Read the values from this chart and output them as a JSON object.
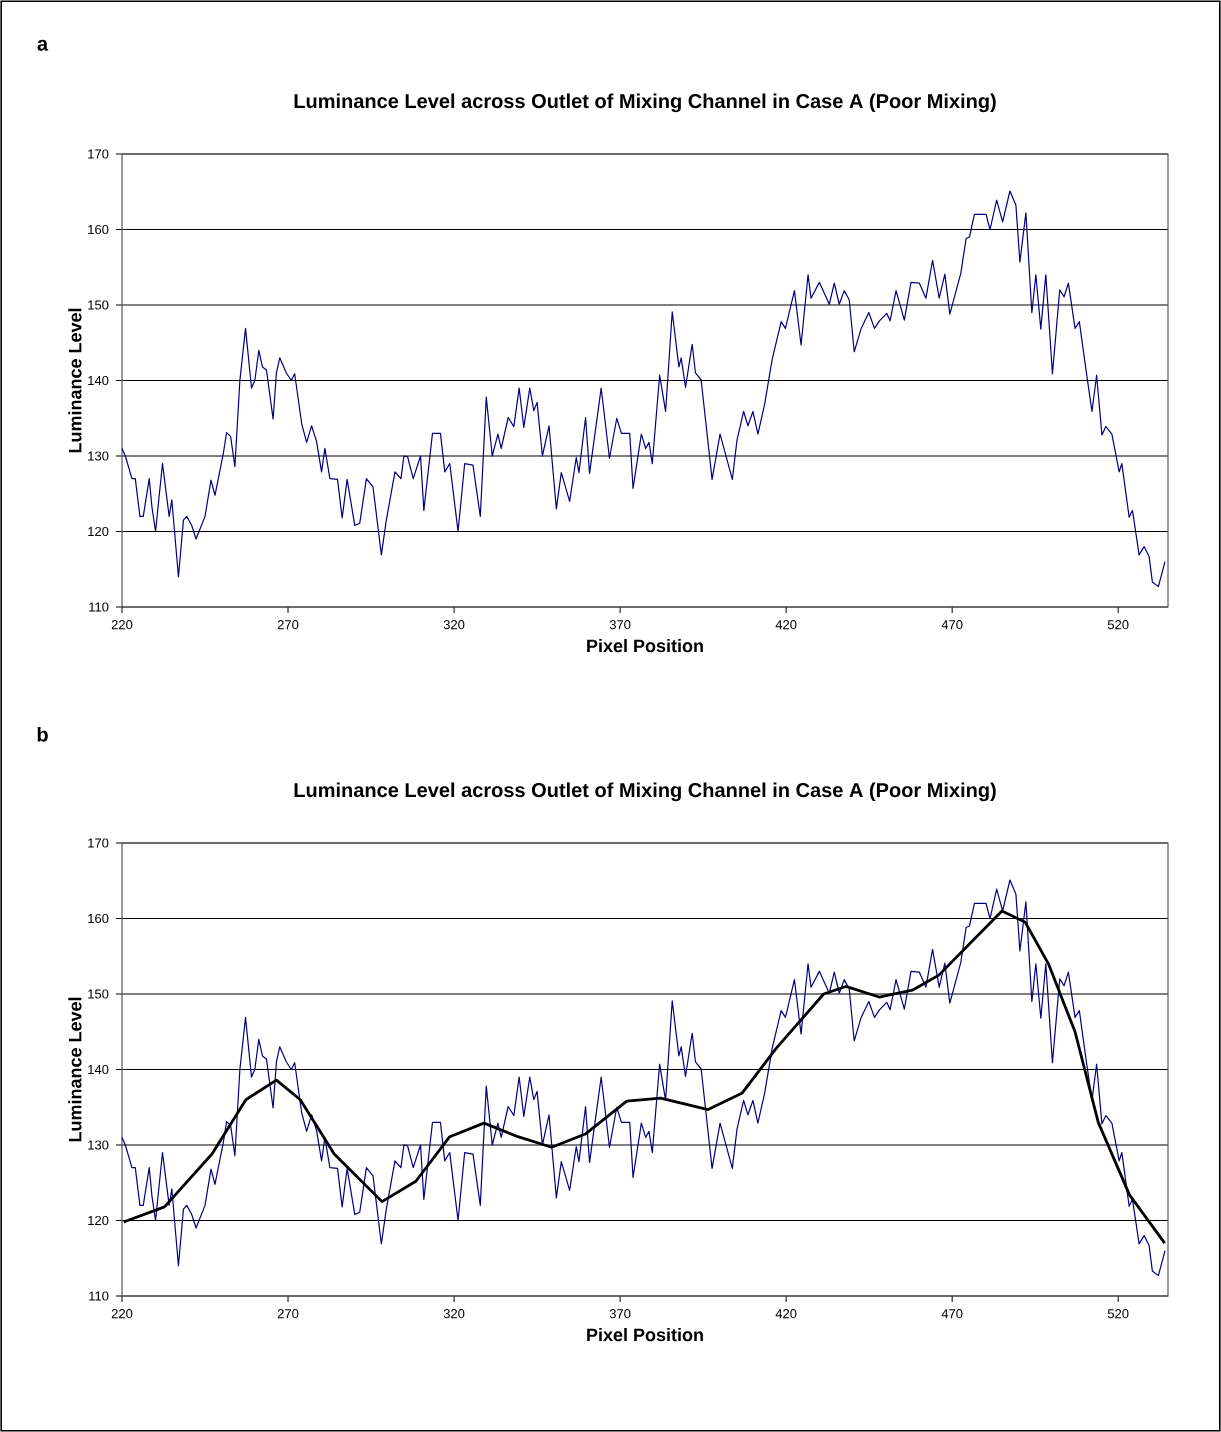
{
  "chart_data": [
    {
      "type": "line",
      "title": "Luminance Level across Outlet of Mixing Channel in Case A (Poor Mixing)",
      "xlabel": "Pixel Position",
      "ylabel": "Luminance Level",
      "annotations": [
        "a"
      ],
      "xlim": [
        220,
        535
      ],
      "ylim": [
        110,
        170
      ],
      "xticks": [
        220,
        270,
        320,
        370,
        420,
        470,
        520
      ],
      "yticks": [
        110,
        120,
        130,
        140,
        150,
        160,
        170
      ],
      "grid": "y",
      "series": [
        {
          "color": "#000080",
          "x": [
            220,
            221,
            223,
            224,
            225.4,
            226.4,
            228.2,
            229,
            230.1,
            232.2,
            234.2,
            235,
            237,
            238.5,
            239.5,
            241,
            242.3,
            245,
            246.8,
            248,
            250.5,
            251.5,
            252.7,
            254,
            255.5,
            257.2,
            259,
            260,
            261.2,
            262.3,
            263.5,
            265.5,
            266.5,
            267.5,
            269.5,
            271,
            272,
            274.1,
            275.6,
            277.1,
            278.6,
            280.1,
            281.1,
            282.6,
            284.9,
            286.3,
            287.8,
            290.1,
            291.6,
            293.6,
            295.6,
            298.1,
            299.6,
            302.2,
            304,
            304.9,
            306,
            307.7,
            309.9,
            310.9,
            313.5,
            315.9,
            317.2,
            318.7,
            321.2,
            323.2,
            325.7,
            327.9,
            329.7,
            331.5,
            333.2,
            334.2,
            336.3,
            338,
            339.6,
            341,
            342.8,
            344,
            345,
            346.6,
            348.6,
            350.8,
            352.3,
            354.8,
            356.8,
            357.6,
            359.6,
            360.8,
            364.3,
            366.8,
            369,
            370.4,
            372.9,
            373.9,
            376.4,
            377.7,
            378.7,
            379.7,
            381.9,
            383.7,
            385.7,
            387.7,
            388.4,
            389.7,
            391.7,
            392.7,
            394.4,
            397.7,
            400.1,
            403.8,
            405.2,
            407.2,
            408.5,
            410,
            411.5,
            413.5,
            415.8,
            418.5,
            419.8,
            422.5,
            424.5,
            426.6,
            427.5,
            430,
            433,
            434.5,
            436,
            437.5,
            439,
            440.5,
            442.6,
            444.9,
            446.6,
            448.1,
            450.3,
            451.3,
            453.1,
            455.6,
            457.6,
            460.1,
            462.1,
            464.1,
            466.1,
            467.8,
            469.3,
            472.6,
            474.2,
            475.2,
            476.7,
            480.2,
            481.4,
            483.4,
            485.2,
            487.4,
            489.2,
            490.4,
            492.2,
            494,
            495.2,
            496.7,
            498.2,
            500.2,
            502.4,
            503.7,
            505,
            507,
            508.3,
            510.3,
            512.1,
            513.5,
            515.1,
            516.3,
            518.1,
            520.3,
            521.1,
            523.3,
            524.3,
            526.3,
            527.8,
            529.3,
            530.3,
            532.1,
            534.1
          ],
          "values": [
            131,
            130,
            127,
            127,
            122,
            122,
            127,
            123.3,
            120,
            129,
            122,
            124.2,
            114,
            121.5,
            122,
            120.8,
            119,
            122,
            126.8,
            124.8,
            130.3,
            133.1,
            132.6,
            128.6,
            140,
            146.9,
            139,
            140,
            144,
            141.8,
            141.4,
            134.9,
            141,
            143,
            141,
            140,
            140.9,
            134.3,
            131.8,
            134,
            131.9,
            127.9,
            131,
            127,
            126.9,
            121.8,
            126.9,
            120.8,
            121.1,
            127,
            125.9,
            116.9,
            121.5,
            127.9,
            127,
            130,
            129.9,
            127,
            130,
            122.8,
            133,
            133,
            127.9,
            129,
            120,
            129,
            128.8,
            122,
            137.8,
            130,
            132.9,
            131,
            135.1,
            133.9,
            139,
            133.8,
            139,
            136,
            137.1,
            130,
            134,
            123,
            127.8,
            124,
            129.8,
            127.8,
            135.1,
            127.7,
            139,
            129.7,
            135,
            133,
            133,
            125.7,
            132.9,
            131,
            131.8,
            129,
            140.7,
            135.9,
            149.1,
            141.8,
            143,
            139.1,
            144.8,
            141,
            140.1,
            126.9,
            132.9,
            126.9,
            132.1,
            135.9,
            134,
            135.9,
            132.9,
            136.8,
            142.8,
            147.8,
            146.9,
            151.9,
            144.7,
            154,
            150.9,
            153,
            150.1,
            152.9,
            150.1,
            151.9,
            150.7,
            143.8,
            146.9,
            149,
            146.9,
            147.9,
            148.9,
            147.9,
            151.9,
            148,
            153,
            152.9,
            150.9,
            155.9,
            150.9,
            154.1,
            148.8,
            154.2,
            158.8,
            159,
            162,
            162,
            160,
            163.9,
            161,
            165.1,
            163.2,
            155.7,
            162.2,
            149,
            154,
            146.8,
            154,
            140.9,
            152,
            151.1,
            152.9,
            146.9,
            147.8,
            141.4,
            135.9,
            140.7,
            132.8,
            133.9,
            132.9,
            127.9,
            129,
            121.9,
            122.8,
            116.9,
            118,
            116.7,
            113.3,
            112.7,
            116
          ]
        }
      ]
    },
    {
      "type": "line",
      "title": "Luminance Level across Outlet of Mixing Channel in Case A (Poor Mixing)",
      "xlabel": "Pixel Position",
      "ylabel": "Luminance Level",
      "annotations": [
        "b"
      ],
      "xlim": [
        220,
        535
      ],
      "ylim": [
        110,
        170
      ],
      "xticks": [
        220,
        270,
        320,
        370,
        420,
        470,
        520
      ],
      "yticks": [
        110,
        120,
        130,
        140,
        150,
        160,
        170
      ],
      "grid": "y",
      "series": [
        {
          "color": "#000080",
          "x": [
            220,
            221,
            223,
            224,
            225.4,
            226.4,
            228.2,
            229,
            230.1,
            232.2,
            234.2,
            235,
            237,
            238.5,
            239.5,
            241,
            242.3,
            245,
            246.8,
            248,
            250.5,
            251.5,
            252.7,
            254,
            255.5,
            257.2,
            259,
            260,
            261.2,
            262.3,
            263.5,
            265.5,
            266.5,
            267.5,
            269.5,
            271,
            272,
            274.1,
            275.6,
            277.1,
            278.6,
            280.1,
            281.1,
            282.6,
            284.9,
            286.3,
            287.8,
            290.1,
            291.6,
            293.6,
            295.6,
            298.1,
            299.6,
            302.2,
            304,
            304.9,
            306,
            307.7,
            309.9,
            310.9,
            313.5,
            315.9,
            317.2,
            318.7,
            321.2,
            323.2,
            325.7,
            327.9,
            329.7,
            331.5,
            333.2,
            334.2,
            336.3,
            338,
            339.6,
            341,
            342.8,
            344,
            345,
            346.6,
            348.6,
            350.8,
            352.3,
            354.8,
            356.8,
            357.6,
            359.6,
            360.8,
            364.3,
            366.8,
            369,
            370.4,
            372.9,
            373.9,
            376.4,
            377.7,
            378.7,
            379.7,
            381.9,
            383.7,
            385.7,
            387.7,
            388.4,
            389.7,
            391.7,
            392.7,
            394.4,
            397.7,
            400.1,
            403.8,
            405.2,
            407.2,
            408.5,
            410,
            411.5,
            413.5,
            415.8,
            418.5,
            419.8,
            422.5,
            424.5,
            426.6,
            427.5,
            430,
            433,
            434.5,
            436,
            437.5,
            439,
            440.5,
            442.6,
            444.9,
            446.6,
            448.1,
            450.3,
            451.3,
            453.1,
            455.6,
            457.6,
            460.1,
            462.1,
            464.1,
            466.1,
            467.8,
            469.3,
            472.6,
            474.2,
            475.2,
            476.7,
            480.2,
            481.4,
            483.4,
            485.2,
            487.4,
            489.2,
            490.4,
            492.2,
            494,
            495.2,
            496.7,
            498.2,
            500.2,
            502.4,
            503.7,
            505,
            507,
            508.3,
            510.3,
            512.1,
            513.5,
            515.1,
            516.3,
            518.1,
            520.3,
            521.1,
            523.3,
            524.3,
            526.3,
            527.8,
            529.3,
            530.3,
            532.1,
            534.1
          ],
          "values": [
            131,
            130,
            127,
            127,
            122,
            122,
            127,
            123.3,
            120,
            129,
            122,
            124.2,
            114,
            121.5,
            122,
            120.8,
            119,
            122,
            126.8,
            124.8,
            130.3,
            133.1,
            132.6,
            128.6,
            140,
            146.9,
            139,
            140,
            144,
            141.8,
            141.4,
            134.9,
            141,
            143,
            141,
            140,
            140.9,
            134.3,
            131.8,
            134,
            131.9,
            127.9,
            131,
            127,
            126.9,
            121.8,
            126.9,
            120.8,
            121.1,
            127,
            125.9,
            116.9,
            121.5,
            127.9,
            127,
            130,
            129.9,
            127,
            130,
            122.8,
            133,
            133,
            127.9,
            129,
            120,
            129,
            128.8,
            122,
            137.8,
            130,
            132.9,
            131,
            135.1,
            133.9,
            139,
            133.8,
            139,
            136,
            137.1,
            130,
            134,
            123,
            127.8,
            124,
            129.8,
            127.8,
            135.1,
            127.7,
            139,
            129.7,
            135,
            133,
            133,
            125.7,
            132.9,
            131,
            131.8,
            129,
            140.7,
            135.9,
            149.1,
            141.8,
            143,
            139.1,
            144.8,
            141,
            140.1,
            126.9,
            132.9,
            126.9,
            132.1,
            135.9,
            134,
            135.9,
            132.9,
            136.8,
            142.8,
            147.8,
            146.9,
            151.9,
            144.7,
            154,
            150.9,
            153,
            150.1,
            152.9,
            150.1,
            151.9,
            150.7,
            143.8,
            146.9,
            149,
            146.9,
            147.9,
            148.9,
            147.9,
            151.9,
            148,
            153,
            152.9,
            150.9,
            155.9,
            150.9,
            154.1,
            148.8,
            154.2,
            158.8,
            159,
            162,
            162,
            160,
            163.9,
            161,
            165.1,
            163.2,
            155.7,
            162.2,
            149,
            154,
            146.8,
            154,
            140.9,
            152,
            151.1,
            152.9,
            146.9,
            147.8,
            141.4,
            135.9,
            140.7,
            132.8,
            133.9,
            132.9,
            127.9,
            129,
            121.9,
            122.8,
            116.9,
            118,
            116.7,
            113.3,
            112.7,
            116
          ]
        },
        {
          "color": "#000000",
          "x": [
            220.5,
            232.8,
            247.1,
            257.3,
            266.5,
            273.7,
            283.9,
            298.3,
            308.5,
            318.7,
            329,
            339.2,
            349.4,
            359.7,
            372,
            382.2,
            396.5,
            406.8,
            417,
            431.3,
            438,
            448,
            458,
            466,
            476,
            485,
            492,
            499,
            507,
            514,
            523.4,
            534
          ],
          "values": [
            119.8,
            121.8,
            128.8,
            136,
            138.6,
            136,
            128.8,
            122.5,
            125.2,
            131.1,
            132.9,
            131.1,
            129.7,
            131.5,
            135.8,
            136.2,
            134.7,
            136.9,
            142.8,
            150,
            151,
            149.6,
            150.5,
            152.5,
            157,
            161,
            159.5,
            154,
            145,
            133,
            123.4,
            117
          ]
        }
      ]
    }
  ]
}
